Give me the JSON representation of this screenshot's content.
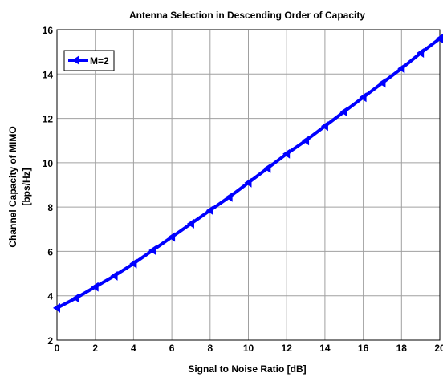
{
  "chart_data": {
    "type": "line",
    "title": "Antenna Selection in Descending Order of Capacity",
    "xlabel": "Signal to Noise Ratio [dB]",
    "ylabel_line1": "Channel Capacity of MIMO",
    "ylabel_line2": "[bps/Hz]",
    "xlim": [
      0,
      20
    ],
    "ylim": [
      2,
      16
    ],
    "xticks": [
      0,
      2,
      4,
      6,
      8,
      10,
      12,
      14,
      16,
      18,
      20
    ],
    "yticks": [
      2,
      4,
      6,
      8,
      10,
      12,
      14,
      16
    ],
    "xtick_labels": [
      "0",
      "2",
      "4",
      "6",
      "8",
      "10",
      "12",
      "14",
      "16",
      "18",
      "20"
    ],
    "ytick_labels": [
      "2",
      "4",
      "6",
      "8",
      "10",
      "12",
      "14",
      "16"
    ],
    "grid": true,
    "legend_position": "top-left",
    "series": [
      {
        "name": "M=2",
        "color": "#0000ff",
        "marker": "left-triangle",
        "x": [
          0,
          1,
          2,
          3,
          4,
          5,
          6,
          7,
          8,
          9,
          10,
          11,
          12,
          13,
          14,
          15,
          16,
          17,
          18,
          19,
          20
        ],
        "y": [
          3.45,
          3.9,
          4.4,
          4.9,
          5.45,
          6.05,
          6.65,
          7.25,
          7.85,
          8.45,
          9.1,
          9.75,
          10.4,
          11.0,
          11.65,
          12.3,
          12.95,
          13.6,
          14.25,
          14.95,
          15.6
        ]
      }
    ]
  }
}
